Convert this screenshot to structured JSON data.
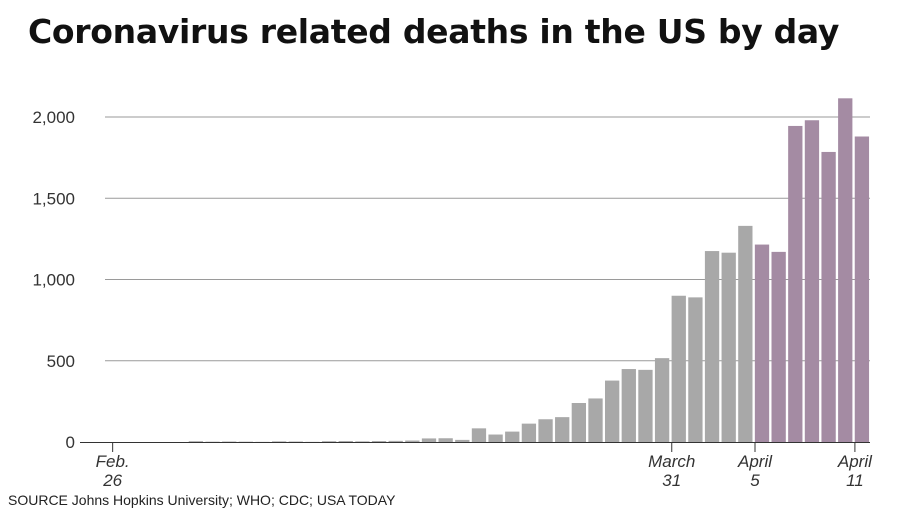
{
  "chart_data": {
    "type": "bar",
    "title": "Coronavirus related deaths in the US by day",
    "source": "SOURCE Johns Hopkins University; WHO; CDC; USA TODAY",
    "ylim": [
      0,
      2200
    ],
    "yticks": [
      {
        "value": 0,
        "label": "0"
      },
      {
        "value": 500,
        "label": "500"
      },
      {
        "value": 1000,
        "label": "1,000"
      },
      {
        "value": 1500,
        "label": "1,500"
      },
      {
        "value": 2000,
        "label": "2,000"
      }
    ],
    "xticks": [
      {
        "index": 0,
        "lines": [
          "Feb.",
          "26"
        ]
      },
      {
        "index": 34,
        "lines": [
          "March",
          "31"
        ]
      },
      {
        "index": 39,
        "lines": [
          "April",
          "5"
        ]
      },
      {
        "index": 45,
        "lines": [
          "April",
          "11"
        ]
      }
    ],
    "highlight_from_index": 39,
    "colors": {
      "base": "#a8a8a8",
      "highlight": "#a48ba3"
    },
    "values": [
      0,
      0,
      0,
      0,
      0,
      5,
      2,
      3,
      2,
      1,
      4,
      3,
      1,
      5,
      6,
      4,
      6,
      7,
      9,
      22,
      23,
      13,
      84,
      46,
      64,
      113,
      140,
      153,
      240,
      268,
      378,
      449,
      444,
      516,
      900,
      890,
      1175,
      1165,
      1330,
      1215,
      1170,
      1945,
      1980,
      1785,
      2115,
      1880
    ]
  }
}
